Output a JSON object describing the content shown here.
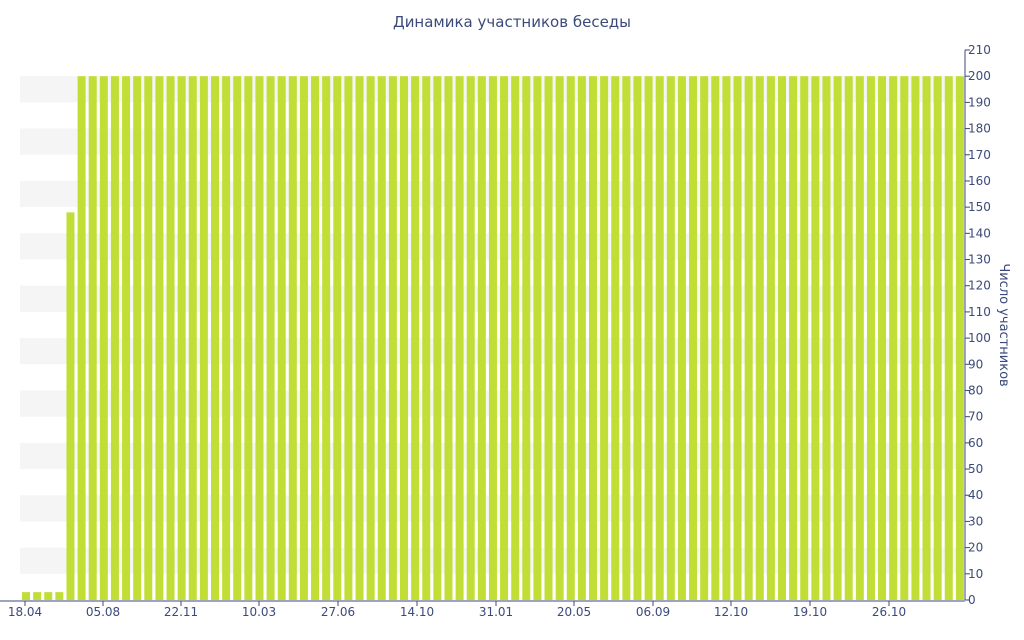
{
  "chart_data": {
    "type": "bar",
    "title": "Динамика участников беседы",
    "ylabel": "Число участников",
    "ylim": [
      0,
      210
    ],
    "y_ticks": [
      0,
      10,
      20,
      30,
      40,
      50,
      60,
      70,
      80,
      90,
      100,
      110,
      120,
      130,
      140,
      150,
      160,
      170,
      180,
      190,
      200,
      210
    ],
    "x_tick_labels": [
      "18.04",
      "05.08",
      "22.11",
      "10.03",
      "27.06",
      "14.10",
      "31.01",
      "20.05",
      "06.09",
      "12.10",
      "19.10",
      "26.10"
    ],
    "values": [
      3,
      3,
      3,
      3,
      148,
      200,
      200,
      200,
      200,
      200,
      200,
      200,
      200,
      200,
      200,
      200,
      200,
      200,
      200,
      200,
      200,
      200,
      200,
      200,
      200,
      200,
      200,
      200,
      200,
      200,
      200,
      200,
      200,
      200,
      200,
      200,
      200,
      200,
      200,
      200,
      200,
      200,
      200,
      200,
      200,
      200,
      200,
      200,
      200,
      200,
      200,
      200,
      200,
      200,
      200,
      200,
      200,
      200,
      200,
      200,
      200,
      200,
      200,
      200,
      200,
      200,
      200,
      200,
      200,
      200,
      200,
      200,
      200,
      200,
      200,
      200,
      200,
      200,
      200,
      200,
      200,
      200,
      200,
      200,
      200
    ],
    "bar_color": "#c0de35",
    "band_color": "#f5f5f5",
    "axis_color": "#3b4a7a",
    "grid": false,
    "legend": "none"
  }
}
